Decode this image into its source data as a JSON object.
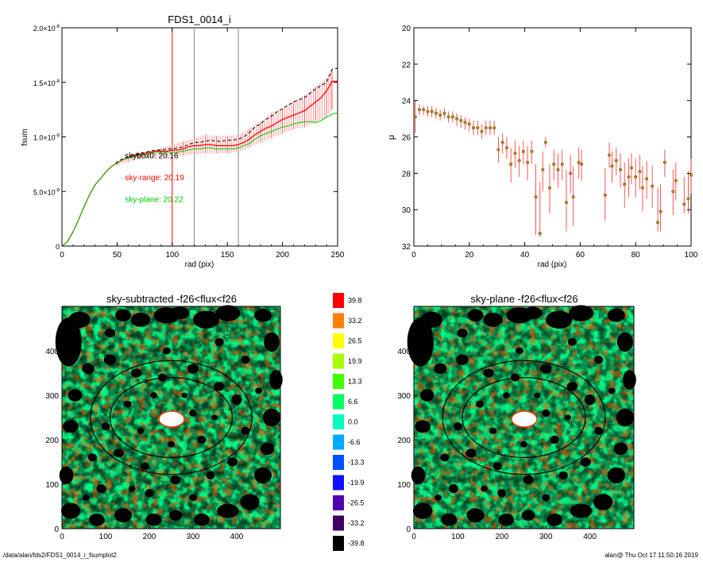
{
  "footer": {
    "left": "/data/alan/fds2/FDS1_0014_i_fsumplot2",
    "right": "alan@  Thu Oct 17 11:50:16 2019"
  },
  "colors": {
    "sky_box": "#000000",
    "sky_range": "#ff0000",
    "sky_plane": "#00cc00",
    "errorbar": "#ff6666",
    "point_fill": "#b8860b",
    "vline_range": "#ff0000",
    "vline_other": "#888888"
  },
  "chart_data": [
    {
      "type": "line",
      "title": "FDS1_0014_i",
      "xlabel": "rad (pix)",
      "ylabel": "fsum",
      "xlim": [
        0,
        250
      ],
      "ylim": [
        0,
        2e-08
      ],
      "xticks": [
        "0",
        "50",
        "100",
        "150",
        "200",
        "250"
      ],
      "yticks": [
        {
          "value": 0,
          "mant": "0",
          "exp": ""
        },
        {
          "value": 5e-09,
          "mant": "5.0×10",
          "exp": "-9"
        },
        {
          "value": 1e-08,
          "mant": "1.0×10",
          "exp": "-8"
        },
        {
          "value": 1.5e-08,
          "mant": "1.5×10",
          "exp": "-8"
        },
        {
          "value": 2e-08,
          "mant": "2.0×10",
          "exp": "-8"
        }
      ],
      "vlines": [
        {
          "x": 100,
          "color": "red"
        },
        {
          "x": 120,
          "color": "gray"
        },
        {
          "x": 160,
          "color": "gray"
        }
      ],
      "annotations": [
        {
          "text": "skybox0: 20.16",
          "x": 60,
          "y": 8.05e-09,
          "color": "black"
        },
        {
          "text": "sky-range: 20.19",
          "x": 60,
          "y": 6.05e-09,
          "color": "red"
        },
        {
          "text": "sky-plane: 20.22",
          "x": 60,
          "y": 4.05e-09,
          "color": "green"
        }
      ],
      "series": [
        {
          "name": "skybox0",
          "x": [
            0,
            5,
            10,
            15,
            20,
            25,
            30,
            35,
            40,
            45,
            50,
            55,
            60,
            65,
            70,
            75,
            80,
            85,
            90,
            95,
            100,
            105,
            110,
            115,
            120,
            125,
            130,
            135,
            140,
            145,
            150,
            155,
            160,
            165,
            170,
            175,
            180,
            185,
            190,
            195,
            200,
            205,
            210,
            215,
            220,
            225,
            230,
            235,
            240,
            245,
            250
          ],
          "y": [
            0,
            4e-10,
            1.3e-09,
            2.4e-09,
            3.6e-09,
            4.7e-09,
            5.6e-09,
            6.2e-09,
            6.8e-09,
            7.3e-09,
            7.7e-09,
            8e-09,
            8.2e-09,
            8.4e-09,
            8.5e-09,
            8.6e-09,
            8.7e-09,
            8.8e-09,
            8.8e-09,
            8.9e-09,
            8.9e-09,
            9e-09,
            9.1e-09,
            9.3e-09,
            9.5e-09,
            9.5e-09,
            9.6e-09,
            9.7e-09,
            9.6e-09,
            9.6e-09,
            9.7e-09,
            9.7e-09,
            9.8e-09,
            1e-08,
            1.04e-08,
            1.09e-08,
            1.12e-08,
            1.16e-08,
            1.19e-08,
            1.23e-08,
            1.26e-08,
            1.29e-08,
            1.32e-08,
            1.34e-08,
            1.36e-08,
            1.4e-08,
            1.44e-08,
            1.47e-08,
            1.5e-08,
            1.62e-08,
            1.63e-08
          ]
        },
        {
          "name": "sky-range",
          "x": [
            0,
            5,
            10,
            15,
            20,
            25,
            30,
            35,
            40,
            45,
            50,
            55,
            60,
            65,
            70,
            75,
            80,
            85,
            90,
            95,
            100,
            105,
            110,
            115,
            120,
            125,
            130,
            135,
            140,
            145,
            150,
            155,
            160,
            165,
            170,
            175,
            180,
            185,
            190,
            195,
            200,
            205,
            210,
            215,
            220,
            225,
            230,
            235,
            240,
            245,
            250
          ],
          "y": [
            0,
            4e-10,
            1.3e-09,
            2.4e-09,
            3.6e-09,
            4.7e-09,
            5.6e-09,
            6.2e-09,
            6.8e-09,
            7.3e-09,
            7.6e-09,
            7.9e-09,
            8.1e-09,
            8.3e-09,
            8.4e-09,
            8.5e-09,
            8.6e-09,
            8.7e-09,
            8.7e-09,
            8.7e-09,
            8.8e-09,
            8.8e-09,
            8.9e-09,
            9.1e-09,
            9.2e-09,
            9.2e-09,
            9.3e-09,
            9.3e-09,
            9.2e-09,
            9.2e-09,
            9.2e-09,
            9.2e-09,
            9.3e-09,
            9.5e-09,
            9.8e-09,
            1.02e-08,
            1.05e-08,
            1.08e-08,
            1.1e-08,
            1.13e-08,
            1.16e-08,
            1.18e-08,
            1.2e-08,
            1.22e-08,
            1.24e-08,
            1.28e-08,
            1.32e-08,
            1.36e-08,
            1.42e-08,
            1.51e-08,
            1.51e-08
          ]
        },
        {
          "name": "sky-plane",
          "x": [
            0,
            5,
            10,
            15,
            20,
            25,
            30,
            35,
            40,
            45,
            50,
            55,
            60,
            65,
            70,
            75,
            80,
            85,
            90,
            95,
            100,
            105,
            110,
            115,
            120,
            125,
            130,
            135,
            140,
            145,
            150,
            155,
            160,
            165,
            170,
            175,
            180,
            185,
            190,
            195,
            200,
            205,
            210,
            215,
            220,
            225,
            230,
            235,
            240,
            245,
            250
          ],
          "y": [
            0,
            4e-10,
            1.3e-09,
            2.4e-09,
            3.6e-09,
            4.7e-09,
            5.6e-09,
            6.2e-09,
            6.8e-09,
            7.3e-09,
            7.6e-09,
            7.9e-09,
            8.1e-09,
            8.2e-09,
            8.3e-09,
            8.4e-09,
            8.5e-09,
            8.6e-09,
            8.6e-09,
            8.6e-09,
            8.6e-09,
            8.6e-09,
            8.7e-09,
            8.8e-09,
            8.9e-09,
            8.9e-09,
            9e-09,
            9e-09,
            8.9e-09,
            8.9e-09,
            8.9e-09,
            8.9e-09,
            9e-09,
            9.2e-09,
            9.4e-09,
            9.8e-09,
            1.01e-08,
            1.03e-08,
            1.05e-08,
            1.07e-08,
            1.09e-08,
            1.1e-08,
            1.12e-08,
            1.13e-08,
            1.14e-08,
            1.14e-08,
            1.13e-08,
            1.15e-08,
            1.18e-08,
            1.21e-08,
            1.22e-08
          ]
        }
      ],
      "errorbars": {
        "x": [
          50,
          60,
          70,
          80,
          90,
          100,
          110,
          120,
          130,
          140,
          150,
          160,
          170,
          180,
          190,
          200,
          210,
          220,
          230,
          240,
          245
        ],
        "low": [
          7.4e-09,
          7.7e-09,
          8e-09,
          8.1e-09,
          8.2e-09,
          8.2e-09,
          8.3e-09,
          8.4e-09,
          8.5e-09,
          8.5e-09,
          8.5e-09,
          8.6e-09,
          9e-09,
          9.5e-09,
          9.9e-09,
          1.03e-08,
          1.07e-08,
          1.09e-08,
          1.14e-08,
          1.18e-08,
          1.25e-08
        ],
        "high": [
          7.8e-09,
          8.1e-09,
          8.5e-09,
          8.7e-09,
          9e-09,
          9.3e-09,
          9.6e-09,
          9.9e-09,
          1.02e-08,
          1.01e-08,
          1.01e-08,
          1.02e-08,
          1.08e-08,
          1.14e-08,
          1.22e-08,
          1.26e-08,
          1.33e-08,
          1.38e-08,
          1.46e-08,
          1.54e-08,
          1.62e-08
        ]
      }
    },
    {
      "type": "scatter",
      "title": "",
      "xlabel": "rad (pix)",
      "ylabel": "μ",
      "xlim": [
        0,
        100
      ],
      "ylim": [
        32,
        20
      ],
      "xticks": [
        "0",
        "20",
        "40",
        "60",
        "80",
        "100"
      ],
      "yticks": [
        "20",
        "22",
        "24",
        "26",
        "28",
        "30",
        "32"
      ],
      "points": [
        {
          "x": 0.5,
          "y": 24.9,
          "lo": 24.0,
          "hi": 25.8
        },
        {
          "x": 2,
          "y": 24.5,
          "lo": 24.2,
          "hi": 24.8
        },
        {
          "x": 3.5,
          "y": 24.5,
          "lo": 24.3,
          "hi": 24.8
        },
        {
          "x": 5,
          "y": 24.6,
          "lo": 24.3,
          "hi": 24.9
        },
        {
          "x": 6.5,
          "y": 24.6,
          "lo": 24.3,
          "hi": 24.9
        },
        {
          "x": 8,
          "y": 24.7,
          "lo": 24.4,
          "hi": 25.0
        },
        {
          "x": 9.5,
          "y": 24.8,
          "lo": 24.5,
          "hi": 25.1
        },
        {
          "x": 11,
          "y": 24.7,
          "lo": 24.4,
          "hi": 25.0
        },
        {
          "x": 12.5,
          "y": 24.9,
          "lo": 24.6,
          "hi": 25.2
        },
        {
          "x": 14,
          "y": 24.9,
          "lo": 24.6,
          "hi": 25.2
        },
        {
          "x": 15.5,
          "y": 25.0,
          "lo": 24.7,
          "hi": 25.4
        },
        {
          "x": 17,
          "y": 25.1,
          "lo": 24.8,
          "hi": 25.5
        },
        {
          "x": 18.5,
          "y": 25.2,
          "lo": 24.9,
          "hi": 25.6
        },
        {
          "x": 20,
          "y": 25.3,
          "lo": 25.0,
          "hi": 25.7
        },
        {
          "x": 21.5,
          "y": 25.5,
          "lo": 25.1,
          "hi": 25.9
        },
        {
          "x": 23,
          "y": 25.5,
          "lo": 25.1,
          "hi": 25.9
        },
        {
          "x": 24.5,
          "y": 25.7,
          "lo": 25.3,
          "hi": 26.1
        },
        {
          "x": 26,
          "y": 25.5,
          "lo": 25.1,
          "hi": 25.9
        },
        {
          "x": 27.5,
          "y": 25.5,
          "lo": 25.1,
          "hi": 25.9
        },
        {
          "x": 29,
          "y": 25.5,
          "lo": 25.1,
          "hi": 25.9
        },
        {
          "x": 30.5,
          "y": 26.7,
          "lo": 26.0,
          "hi": 27.4
        },
        {
          "x": 32,
          "y": 26.3,
          "lo": 25.8,
          "hi": 26.9
        },
        {
          "x": 33.5,
          "y": 26.6,
          "lo": 26.0,
          "hi": 27.2
        },
        {
          "x": 35,
          "y": 27.5,
          "lo": 26.6,
          "hi": 28.5
        },
        {
          "x": 36.5,
          "y": 26.9,
          "lo": 26.2,
          "hi": 27.7
        },
        {
          "x": 38,
          "y": 27.3,
          "lo": 26.5,
          "hi": 28.2
        },
        {
          "x": 39.5,
          "y": 26.8,
          "lo": 26.2,
          "hi": 27.5
        },
        {
          "x": 41,
          "y": 27.4,
          "lo": 26.5,
          "hi": 28.4
        },
        {
          "x": 42.5,
          "y": 26.8,
          "lo": 26.2,
          "hi": 27.5
        },
        {
          "x": 44,
          "y": 29.3,
          "lo": 27.5,
          "hi": 31.4
        },
        {
          "x": 45.5,
          "y": 31.3,
          "lo": 28.5,
          "hi": 31.5
        },
        {
          "x": 46.5,
          "y": 27.8,
          "lo": 26.8,
          "hi": 29.0
        },
        {
          "x": 47.5,
          "y": 26.3,
          "lo": 26.0,
          "hi": 26.6
        },
        {
          "x": 49,
          "y": 28.8,
          "lo": 27.5,
          "hi": 30.2
        },
        {
          "x": 50.5,
          "y": 27.5,
          "lo": 26.7,
          "hi": 28.4
        },
        {
          "x": 52,
          "y": 27.8,
          "lo": 26.9,
          "hi": 28.8
        },
        {
          "x": 53.5,
          "y": 27.5,
          "lo": 26.7,
          "hi": 28.4
        },
        {
          "x": 55,
          "y": 29.6,
          "lo": 27.8,
          "hi": 31.2
        },
        {
          "x": 56.5,
          "y": 28.0,
          "lo": 27.0,
          "hi": 29.1
        },
        {
          "x": 57.5,
          "y": 29.3,
          "lo": 27.6,
          "hi": 30.9
        },
        {
          "x": 59.5,
          "y": 27.4,
          "lo": 26.6,
          "hi": 28.3
        },
        {
          "x": 60.5,
          "y": 27.5,
          "lo": 26.7,
          "hi": 28.4
        },
        {
          "x": 69,
          "y": 29.2,
          "lo": 27.7,
          "hi": 30.6
        },
        {
          "x": 70.5,
          "y": 27.0,
          "lo": 26.3,
          "hi": 27.7
        },
        {
          "x": 71.5,
          "y": 27.6,
          "lo": 26.8,
          "hi": 28.5
        },
        {
          "x": 73,
          "y": 27.3,
          "lo": 26.6,
          "hi": 28.1
        },
        {
          "x": 74.5,
          "y": 27.8,
          "lo": 26.9,
          "hi": 28.8
        },
        {
          "x": 76,
          "y": 28.6,
          "lo": 27.4,
          "hi": 29.9
        },
        {
          "x": 77.5,
          "y": 28.2,
          "lo": 27.2,
          "hi": 29.3
        },
        {
          "x": 78.5,
          "y": 27.7,
          "lo": 26.9,
          "hi": 28.6
        },
        {
          "x": 80,
          "y": 28.2,
          "lo": 27.2,
          "hi": 29.3
        },
        {
          "x": 81.5,
          "y": 27.9,
          "lo": 27.0,
          "hi": 28.9
        },
        {
          "x": 82.5,
          "y": 28.8,
          "lo": 27.6,
          "hi": 30.1
        },
        {
          "x": 84,
          "y": 28.3,
          "lo": 27.3,
          "hi": 29.4
        },
        {
          "x": 86,
          "y": 28.7,
          "lo": 27.6,
          "hi": 29.9
        },
        {
          "x": 88,
          "y": 30.7,
          "lo": 28.8,
          "hi": 31.2
        },
        {
          "x": 89,
          "y": 30.1,
          "lo": 28.6,
          "hi": 31.2
        },
        {
          "x": 90.5,
          "y": 27.4,
          "lo": 26.7,
          "hi": 28.2
        },
        {
          "x": 93.5,
          "y": 29.0,
          "lo": 27.8,
          "hi": 30.3
        },
        {
          "x": 94.5,
          "y": 28.4,
          "lo": 27.4,
          "hi": 29.5
        },
        {
          "x": 97.5,
          "y": 29.7,
          "lo": 28.2,
          "hi": 30.2
        },
        {
          "x": 99,
          "y": 29.4,
          "lo": 27.9,
          "hi": 30.2
        },
        {
          "x": 100,
          "y": 28.1,
          "lo": 27.2,
          "hi": 29.1
        }
      ]
    },
    {
      "type": "heatmap",
      "title": "sky-subtracted -f26<flux<f26",
      "xlim": [
        0,
        500
      ],
      "ylim": [
        0,
        500
      ],
      "xticks": [
        "0",
        "100",
        "200",
        "300",
        "400"
      ],
      "yticks": [
        "0",
        "100",
        "200",
        "300",
        "400"
      ],
      "ellipses": [
        {
          "cx": 250,
          "cy": 250,
          "rx": 185,
          "ry": 128
        },
        {
          "cx": 250,
          "cy": 250,
          "rx": 140,
          "ry": 90
        }
      ]
    },
    {
      "type": "heatmap",
      "title": "sky-plane -f26<flux<f26",
      "xlim": [
        0,
        500
      ],
      "ylim": [
        0,
        500
      ],
      "xticks": [
        "0",
        "100",
        "200",
        "300",
        "400"
      ],
      "yticks": [
        "0",
        "100",
        "200",
        "300",
        "400"
      ],
      "ellipses": [
        {
          "cx": 250,
          "cy": 250,
          "rx": 185,
          "ry": 128
        },
        {
          "cx": 250,
          "cy": 250,
          "rx": 140,
          "ry": 90
        }
      ]
    },
    {
      "type": "table",
      "title": "colorbar",
      "levels": [
        "39.8",
        "33.2",
        "26.5",
        "19.9",
        "13.3",
        "6.6",
        "0.0",
        "-6.6",
        "-13.3",
        "-19.9",
        "-26.5",
        "-33.2",
        "-39.8"
      ],
      "colors": [
        "#ff0000",
        "#ff8000",
        "#ffff00",
        "#a8ff00",
        "#40ff00",
        "#00ff60",
        "#00ffc0",
        "#00a8ff",
        "#0050ff",
        "#1010ff",
        "#5000b0",
        "#400060",
        "#000000"
      ]
    }
  ]
}
